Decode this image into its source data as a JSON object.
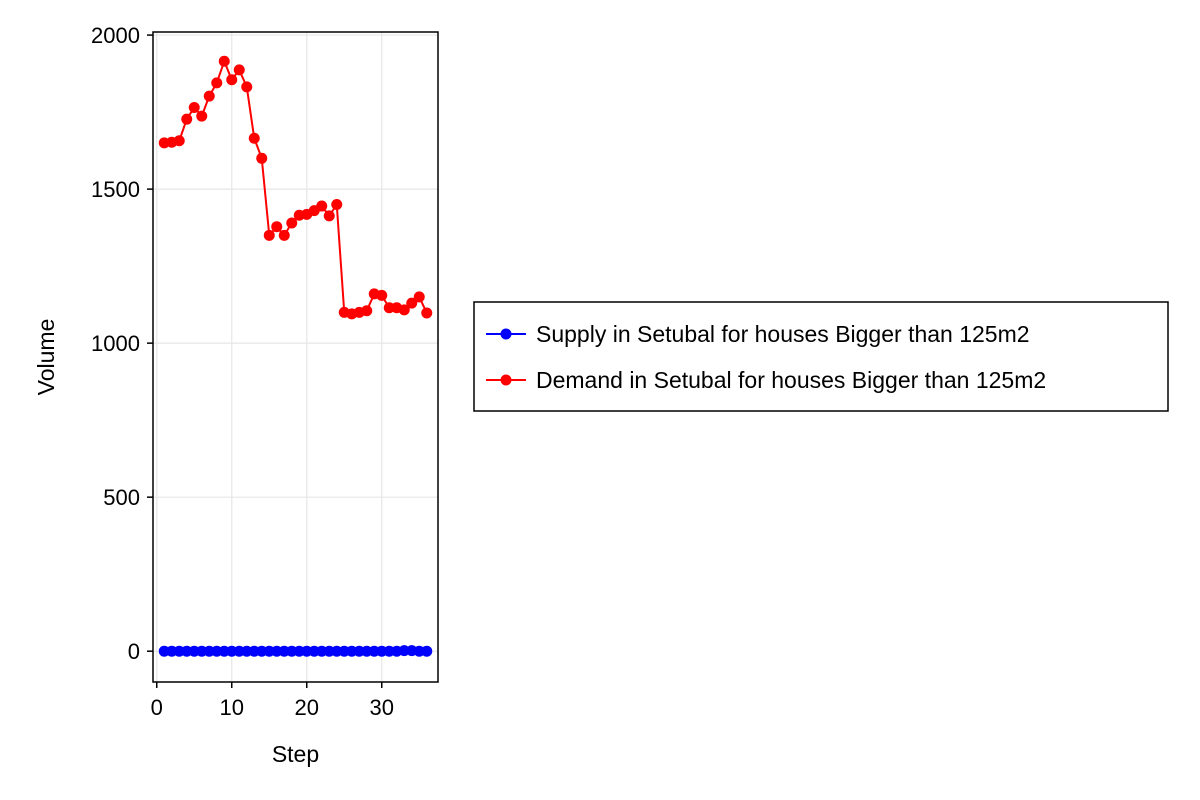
{
  "chart_data": {
    "type": "line",
    "xlabel": "Step",
    "ylabel": "Volume",
    "xlim": [
      -0.5,
      37.5
    ],
    "ylim": [
      -100,
      2010
    ],
    "xticks": [
      0,
      10,
      20,
      30
    ],
    "yticks": [
      0,
      500,
      1000,
      1500,
      2000
    ],
    "x_tick_labels": [
      "0",
      "10",
      "20",
      "30"
    ],
    "y_tick_labels": [
      "0",
      "500",
      "1000",
      "1500",
      "2000"
    ],
    "grid": true,
    "legend_position": "right",
    "x": [
      1,
      2,
      3,
      4,
      5,
      6,
      7,
      8,
      9,
      10,
      11,
      12,
      13,
      14,
      15,
      16,
      17,
      18,
      19,
      20,
      21,
      22,
      23,
      24,
      25,
      26,
      27,
      28,
      29,
      30,
      31,
      32,
      33,
      34,
      35,
      36
    ],
    "series": [
      {
        "name": "Supply in Setubal for houses Bigger than 125m2",
        "color": "#0000ff",
        "values": [
          0,
          0,
          0,
          0,
          0,
          0,
          0,
          0,
          0,
          0,
          0,
          0,
          0,
          0,
          0,
          0,
          0,
          0,
          0,
          0,
          0,
          0,
          0,
          0,
          0,
          0,
          0,
          0,
          0,
          0,
          0,
          0,
          2,
          2,
          0,
          0
        ]
      },
      {
        "name": "Demand in Setubal for houses Bigger than 125m2",
        "color": "#ff0000",
        "values": [
          1650,
          1652,
          1657,
          1727,
          1765,
          1737,
          1802,
          1845,
          1915,
          1855,
          1887,
          1832,
          1665,
          1600,
          1350,
          1378,
          1350,
          1390,
          1415,
          1418,
          1430,
          1445,
          1413,
          1450,
          1100,
          1095,
          1100,
          1105,
          1160,
          1155,
          1115,
          1115,
          1108,
          1130,
          1150,
          1098
        ]
      }
    ]
  }
}
